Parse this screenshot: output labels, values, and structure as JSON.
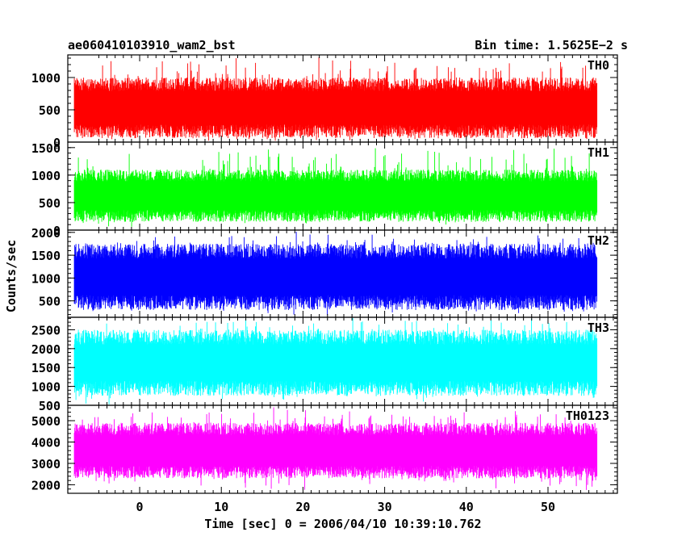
{
  "chart_data": {
    "type": "line",
    "title_left": "ae060410103910_wam2_bst",
    "title_right": "Bin time: 1.5625E−2 s",
    "xlabel": "Time [sec] 0 = 2006/04/10 10:39:10.762",
    "ylabel": "Counts/sec",
    "xlim": [
      -8.8,
      58.5
    ],
    "x_ticks": [
      0,
      10,
      20,
      30,
      40,
      50
    ],
    "x_tick_labels": [
      "0",
      "10",
      "20",
      "30",
      "40",
      "50"
    ],
    "data_x_range": [
      -8,
      56
    ],
    "bin_time": 0.015625,
    "panels": [
      {
        "name": "TH0",
        "color": "#ff0000",
        "ylim": [
          0,
          1350
        ],
        "y_ticks": [
          0,
          500,
          1000
        ],
        "y_tick_labels": [
          "0",
          "500",
          "1000"
        ],
        "typical_range": [
          60,
          1000
        ],
        "peak": 1340,
        "trough": 0
      },
      {
        "name": "TH1",
        "color": "#00ff00",
        "ylim": [
          0,
          1600
        ],
        "y_ticks": [
          0,
          500,
          1000,
          1500
        ],
        "y_tick_labels": [
          "0",
          "500",
          "1000",
          "1500"
        ],
        "typical_range": [
          150,
          1100
        ],
        "peak": 1500,
        "trough": 50
      },
      {
        "name": "TH2",
        "color": "#0000ff",
        "ylim": [
          140,
          2050
        ],
        "y_ticks": [
          500,
          1000,
          1500,
          2000
        ],
        "y_tick_labels": [
          "500",
          "1000",
          "1500",
          "2000"
        ],
        "typical_range": [
          300,
          1750
        ],
        "peak": 2050,
        "trough": 140
      },
      {
        "name": "TH3",
        "color": "#00ffff",
        "ylim": [
          500,
          2830
        ],
        "y_ticks": [
          500,
          1000,
          1500,
          2000,
          2500
        ],
        "y_tick_labels": [
          "500",
          "1000",
          "1500",
          "2000",
          "2500"
        ],
        "typical_range": [
          750,
          2500
        ],
        "peak": 2830,
        "trough": 500
      },
      {
        "name": "TH0123",
        "color": "#ff00ff",
        "ylim": [
          1600,
          5720
        ],
        "y_ticks": [
          2000,
          3000,
          4000,
          5000
        ],
        "y_tick_labels": [
          "2000",
          "3000",
          "4000",
          "5000"
        ],
        "typical_range": [
          2300,
          4900
        ],
        "peak": 5700,
        "trough": 1650
      }
    ]
  }
}
